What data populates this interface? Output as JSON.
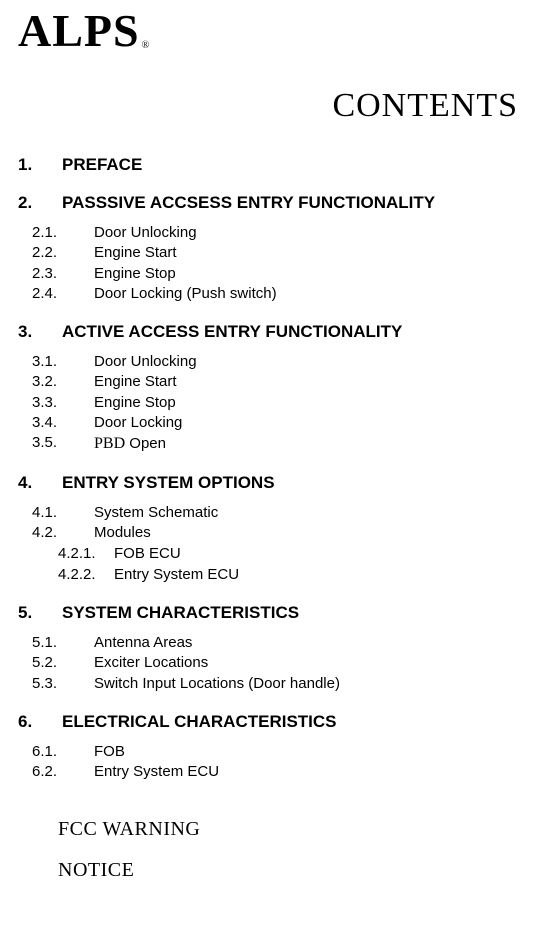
{
  "logo": {
    "brand": "ALPS",
    "registered": "®"
  },
  "title": "CONTENTS",
  "sections": [
    {
      "num": "1.",
      "title": "PREFACE",
      "items": []
    },
    {
      "num": "2.",
      "title": "PASSSIVE ACCSESS ENTRY FUNCTIONALITY",
      "items": [
        {
          "num": "2.1.",
          "text": "Door Unlocking"
        },
        {
          "num": "2.2.",
          "text": "Engine Start"
        },
        {
          "num": "2.3.",
          "text": "Engine Stop"
        },
        {
          "num": "2.4.",
          "text": "Door Locking (Push switch)"
        }
      ]
    },
    {
      "num": "3.",
      "title": "ACTIVE ACCESS ENTRY FUNCTIONALITY",
      "items": [
        {
          "num": "3.1.",
          "text": "Door Unlocking"
        },
        {
          "num": "3.2.",
          "text": "Engine Start"
        },
        {
          "num": "3.3.",
          "text": "Engine Stop"
        },
        {
          "num": "3.4.",
          "text": "Door Locking"
        },
        {
          "num": "3.5.",
          "text": "PBD Open",
          "serif": true
        }
      ]
    },
    {
      "num": "4.",
      "title": "ENTRY SYSTEM OPTIONS",
      "items": [
        {
          "num": "4.1.",
          "text": "System Schematic"
        },
        {
          "num": "4.2.",
          "text": "Modules",
          "sub": [
            {
              "num": "4.2.1.",
              "text": "FOB ECU"
            },
            {
              "num": "4.2.2.",
              "text": "Entry System ECU"
            }
          ]
        }
      ]
    },
    {
      "num": "5.",
      "title": "SYSTEM CHARACTERISTICS",
      "items": [
        {
          "num": "5.1.",
          "text": "Antenna Areas"
        },
        {
          "num": "5.2.",
          "text": "Exciter Locations"
        },
        {
          "num": "5.3.",
          "text": "Switch Input Locations (Door handle)"
        }
      ]
    },
    {
      "num": "6.",
      "title": "ELECTRICAL CHARACTERISTICS",
      "items": [
        {
          "num": "6.1.",
          "text": "FOB"
        },
        {
          "num": "6.2.",
          "text": "Entry System ECU"
        }
      ]
    }
  ],
  "footer": [
    "FCC WARNING",
    "NOTICE"
  ]
}
